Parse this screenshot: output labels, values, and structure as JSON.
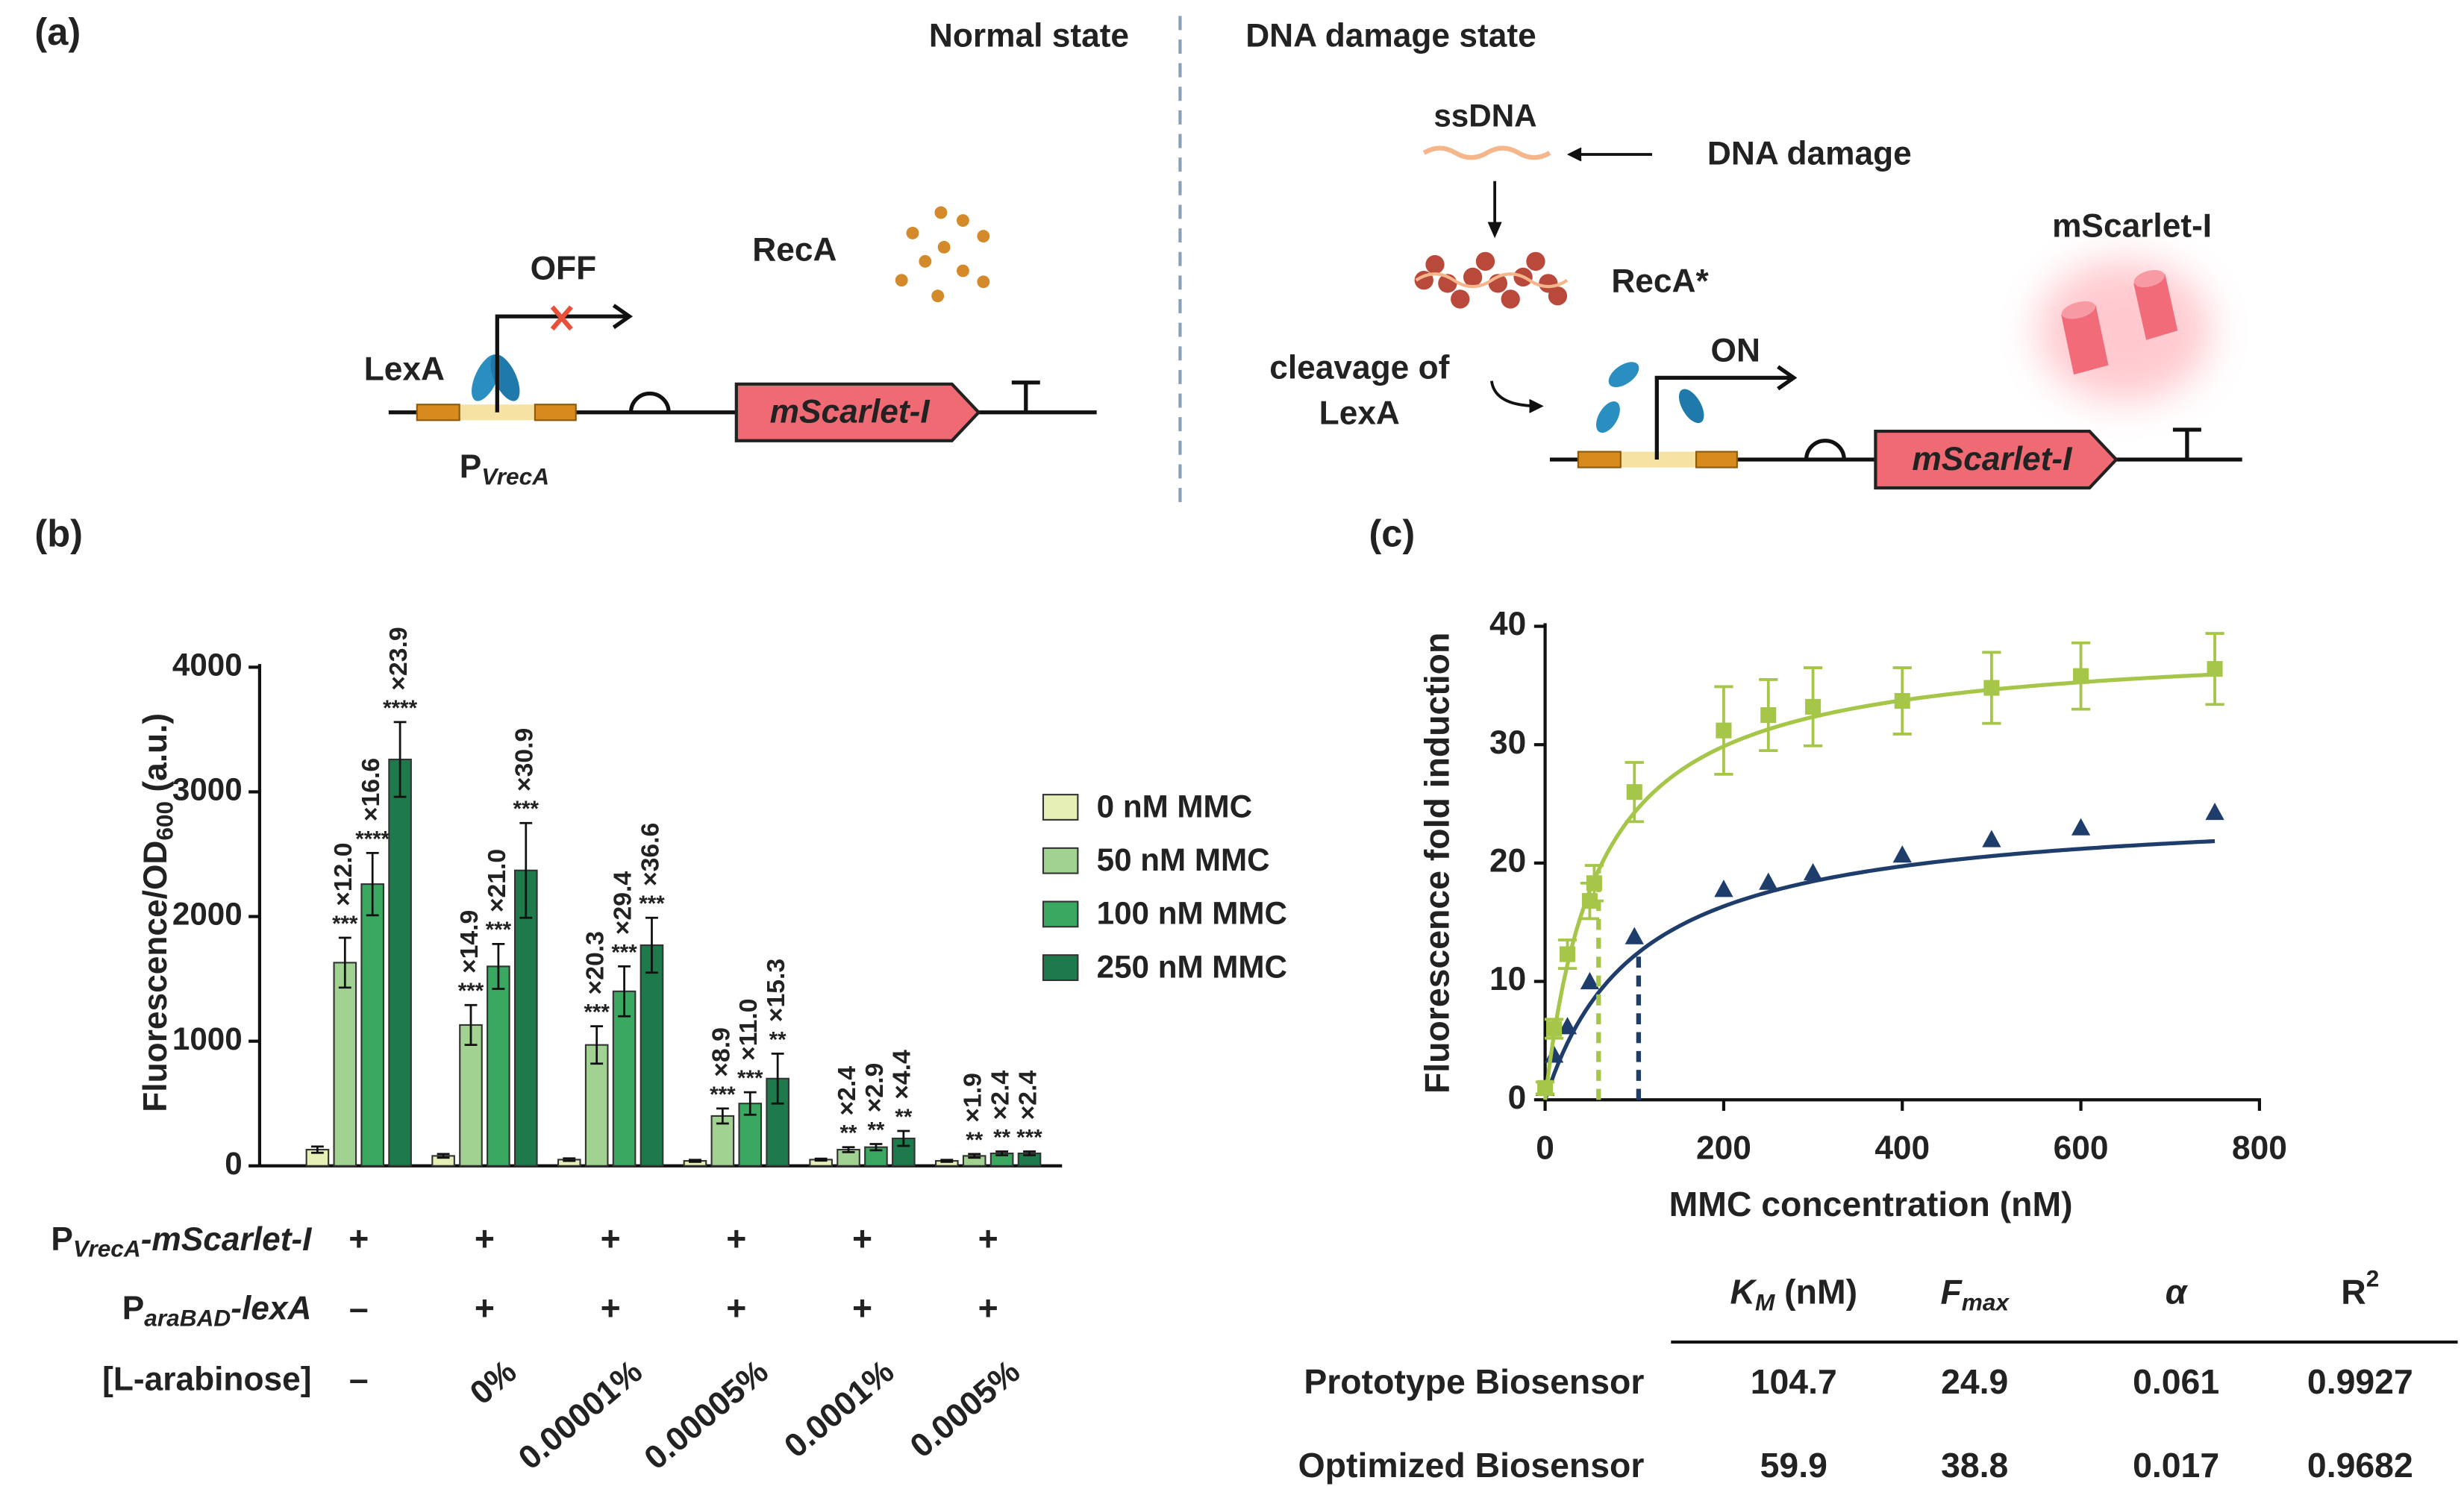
{
  "panel_labels": [
    "(a)",
    "(b)",
    "(c)"
  ],
  "diagram": {
    "normal_state": "Normal state",
    "damage_state": "DNA damage state",
    "off": "OFF",
    "recA": "RecA",
    "lexA": "LexA",
    "promoter": {
      "main": "P",
      "sub": "VrecA"
    },
    "gene": "mScarlet-I",
    "ssDNA": "ssDNA",
    "dna_damage": "DNA damage",
    "recA_star": "RecA*",
    "protein": "mScarlet-I",
    "cleavage": [
      "cleavage of",
      "LexA"
    ],
    "on": "ON"
  },
  "chart_data": [
    {
      "type": "bar",
      "y_label": {
        "main": "Fluorescence/OD",
        "sub": "600",
        "rest": " (a.u.)"
      },
      "ylim": [
        0,
        4000
      ],
      "yticks": [
        0,
        1000,
        2000,
        3000,
        4000
      ],
      "categories_label": "[L-arabinose]",
      "categories": [
        "–",
        "0%",
        "0.00001%",
        "0.00005%",
        "0.0001%",
        "0.0005%"
      ],
      "conditions": [
        {
          "label": {
            "main": "P",
            "sub": "VrecA",
            "rest": "-mScarlet-I"
          },
          "values": [
            "+",
            "+",
            "+",
            "+",
            "+",
            "+"
          ]
        },
        {
          "label": {
            "main": "P",
            "sub": "araBAD",
            "rest": "-lexA"
          },
          "values": [
            "–",
            "+",
            "+",
            "+",
            "+",
            "+"
          ]
        }
      ],
      "series": [
        {
          "name": "0 nM MMC",
          "color": "#e6efb6",
          "values": [
            130,
            80,
            50,
            40,
            50,
            40
          ],
          "errors": [
            25,
            15,
            10,
            8,
            8,
            8
          ]
        },
        {
          "name": "50 nM MMC",
          "color": "#a2d291",
          "values": [
            1630,
            1130,
            970,
            400,
            130,
            80
          ],
          "errors": [
            200,
            160,
            150,
            60,
            20,
            15
          ],
          "fold_labels": [
            "×12.0",
            "×14.9",
            "×20.3",
            "×8.9",
            "×2.4",
            "×1.9"
          ],
          "significance": [
            "***",
            "***",
            "***",
            "***",
            "**",
            "**"
          ]
        },
        {
          "name": "100 nM MMC",
          "color": "#3aa860",
          "values": [
            2260,
            1600,
            1400,
            500,
            150,
            100
          ],
          "errors": [
            250,
            180,
            200,
            90,
            25,
            15
          ],
          "fold_labels": [
            "×16.6",
            "×21.0",
            "×29.4",
            "×11.0",
            "×2.9",
            "×2.4"
          ],
          "significance": [
            "****",
            "***",
            "***",
            "***",
            "**",
            "**"
          ]
        },
        {
          "name": "250 nM MMC",
          "color": "#1e7a4b",
          "values": [
            3260,
            2370,
            1770,
            700,
            220,
            100
          ],
          "errors": [
            300,
            380,
            220,
            200,
            60,
            15
          ],
          "fold_labels": [
            "×23.9",
            "×30.9",
            "×36.6",
            "×15.3",
            "×4.4",
            "×2.4"
          ],
          "significance": [
            "****",
            "***",
            "***",
            "**",
            "**",
            "***"
          ]
        }
      ]
    },
    {
      "type": "scatter",
      "x_label": "MMC concentration (nM)",
      "y_label": "Fluorescence fold induction",
      "xlim": [
        0,
        800
      ],
      "xticks": [
        0,
        200,
        400,
        600,
        800
      ],
      "ylim": [
        0,
        40
      ],
      "yticks": [
        0,
        10,
        20,
        30,
        40
      ],
      "series": [
        {
          "name": "Prototype Biosensor",
          "color": "#1f3d6b",
          "marker": "triangle",
          "x": [
            0,
            10,
            25,
            50,
            100,
            200,
            250,
            300,
            400,
            500,
            600,
            750
          ],
          "values": [
            1,
            3.8,
            6.2,
            10,
            13.8,
            17.8,
            18.4,
            19.2,
            20.7,
            22,
            23,
            24.3
          ],
          "fit": {
            "km": 104.7,
            "fmax": 24.9,
            "alpha": 0.061,
            "r2": 0.9927
          }
        },
        {
          "name": "Optimized Biosensor",
          "color": "#a6c64a",
          "marker": "square",
          "x": [
            0,
            10,
            25,
            50,
            55,
            100,
            200,
            250,
            300,
            400,
            500,
            600,
            750
          ],
          "values": [
            1,
            6,
            12.3,
            16.8,
            18.3,
            26,
            31.2,
            32.5,
            33.2,
            33.7,
            34.8,
            35.8,
            36.4
          ],
          "errors": [
            0.5,
            0.8,
            1.2,
            1.5,
            1.5,
            2.5,
            3.7,
            3,
            3.3,
            2.8,
            3,
            2.8,
            3
          ],
          "fit": {
            "km": 59.9,
            "fmax": 38.8,
            "alpha": 0.017,
            "r2": 0.9682
          }
        }
      ]
    }
  ],
  "table": {
    "headers": [
      {
        "main": "K",
        "sub": "M",
        "rest": " (nM)"
      },
      {
        "main": "F",
        "sub": "max"
      },
      {
        "main": "α"
      },
      {
        "main": "R",
        "sup": "2"
      }
    ]
  }
}
